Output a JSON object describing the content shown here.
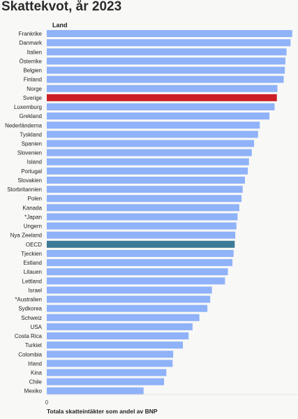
{
  "chart_data": {
    "type": "bar",
    "orientation": "horizontal",
    "title": "Skattekvot, år 2023",
    "category_header": "Land",
    "xlabel": "Totala skatteintäkter som andel av BNP",
    "x_tick_labels": [
      "0"
    ],
    "xlim": [
      0,
      43.5
    ],
    "grid": false,
    "colors": {
      "default": "#8fb2f8",
      "highlight_sweden": "#cc1f25",
      "highlight_oecd": "#3d7a97"
    },
    "categories": [
      "Frankrike",
      "Danmark",
      "Italien",
      "Österrike",
      "Belgien",
      "Finland",
      "Norge",
      "Sverige",
      "Luxemburg",
      "Grekland",
      "Nederländerna",
      "Tyskland",
      "Spanien",
      "Slovenien",
      "Island",
      "Portugal",
      "Slovakien",
      "Storbritannien",
      "Polen",
      "Kanada",
      "*Japan",
      "Ungern",
      "Nya Zeeland",
      "OECD",
      "Tjeckien",
      "Estland",
      "Litauen",
      "Lettland",
      "Israel",
      "*Australien",
      "Sydkorea",
      "Schweiz",
      "USA",
      "Costa Rica",
      "Turkiet",
      "Colombia",
      "Irland",
      "Kina",
      "Chile",
      "Mexiko"
    ],
    "values": [
      43.1,
      42.8,
      42.1,
      41.9,
      41.8,
      41.6,
      40.5,
      40.4,
      40.0,
      39.1,
      37.4,
      37.1,
      36.4,
      36.0,
      35.5,
      35.3,
      34.8,
      34.4,
      34.2,
      33.8,
      33.5,
      33.3,
      33.1,
      33.0,
      32.8,
      32.6,
      31.8,
      31.3,
      29.0,
      28.7,
      28.2,
      26.8,
      25.6,
      24.9,
      23.9,
      22.2,
      22.1,
      21.0,
      20.6,
      17.0
    ],
    "highlight": {
      "Sverige": "highlight_sweden",
      "OECD": "highlight_oecd"
    }
  }
}
